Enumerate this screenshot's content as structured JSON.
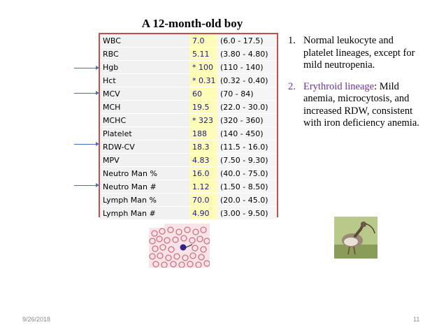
{
  "slide": {
    "title": "A 12-month-old boy",
    "date": "9/26/2018",
    "page_number": "11"
  },
  "lab_results": [
    {
      "name": "WBC",
      "value": "7.0",
      "range": "(6.0 - 17.5)"
    },
    {
      "name": "RBC",
      "value": "5.11",
      "range": "(3.80 - 4.80)"
    },
    {
      "name": "Hgb",
      "value": "* 100",
      "range": "(110 - 140)"
    },
    {
      "name": "Hct",
      "value": "* 0.31",
      "range": "(0.32 - 0.40)"
    },
    {
      "name": "MCV",
      "value": "60",
      "range": "(70 - 84)"
    },
    {
      "name": "MCH",
      "value": "19.5",
      "range": "(22.0 - 30.0)"
    },
    {
      "name": "MCHC",
      "value": "* 323",
      "range": "(320 - 360)"
    },
    {
      "name": "Platelet",
      "value": "188",
      "range": "(140 - 450)"
    },
    {
      "name": "RDW-CV",
      "value": "18.3",
      "range": "(11.5 - 16.0)"
    },
    {
      "name": "MPV",
      "value": "4.83",
      "range": "(7.50 - 9.30)"
    },
    {
      "name": "Neutro Man %",
      "value": "16.0",
      "range": "(40.0 - 75.0)"
    },
    {
      "name": "Neutro Man #",
      "value": "1.12",
      "range": "(1.50 - 8.50)"
    },
    {
      "name": "Lymph Man %",
      "value": "70.0",
      "range": "(20.0 - 45.0)"
    },
    {
      "name": "Lymph Man #",
      "value": "4.90",
      "range": "(3.00 - 9.50)"
    }
  ],
  "notes": [
    {
      "number": "1.",
      "lead": "",
      "text": "Normal leukocyte and platelet lineages, except for mild neutropenia."
    },
    {
      "number": "2.",
      "lead": "Erythroid lineage",
      "text": ": Mild anemia, microcytosis, and increased RDW, consistent with iron deficiency anemia."
    }
  ],
  "colors": {
    "table_border": "#c0504d",
    "value_cell": "#fffbb8",
    "arrow": "#4a6fc0",
    "highlight_text": "#7030a0"
  }
}
